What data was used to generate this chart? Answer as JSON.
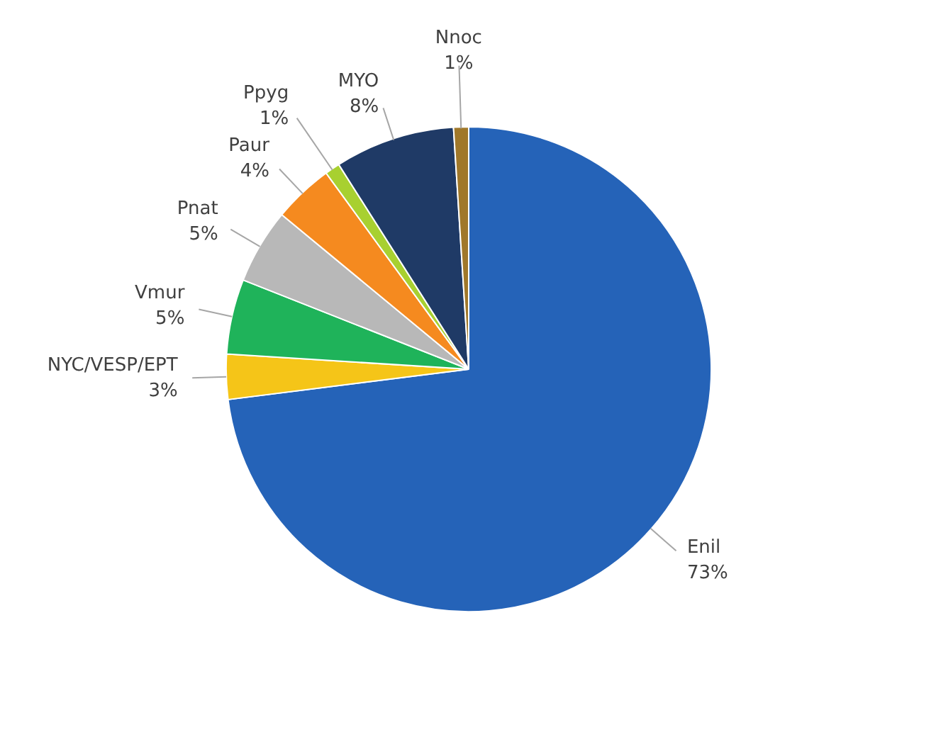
{
  "chart_data": {
    "type": "pie",
    "categories": [
      "Enil",
      "NYC/VESP/EPT",
      "Vmur",
      "Pnat",
      "Paur",
      "Ppyg",
      "MYO",
      "Nnoc"
    ],
    "values": [
      73,
      3,
      5,
      5,
      4,
      1,
      8,
      1
    ],
    "value_labels": [
      "73%",
      "3%",
      "5%",
      "5%",
      "4%",
      "1%",
      "8%",
      "1%"
    ],
    "colors": [
      "#2563b8",
      "#f5c518",
      "#1fb35a",
      "#b8b8b8",
      "#f58a1f",
      "#a8d030",
      "#1f3a66",
      "#a0782a"
    ]
  }
}
